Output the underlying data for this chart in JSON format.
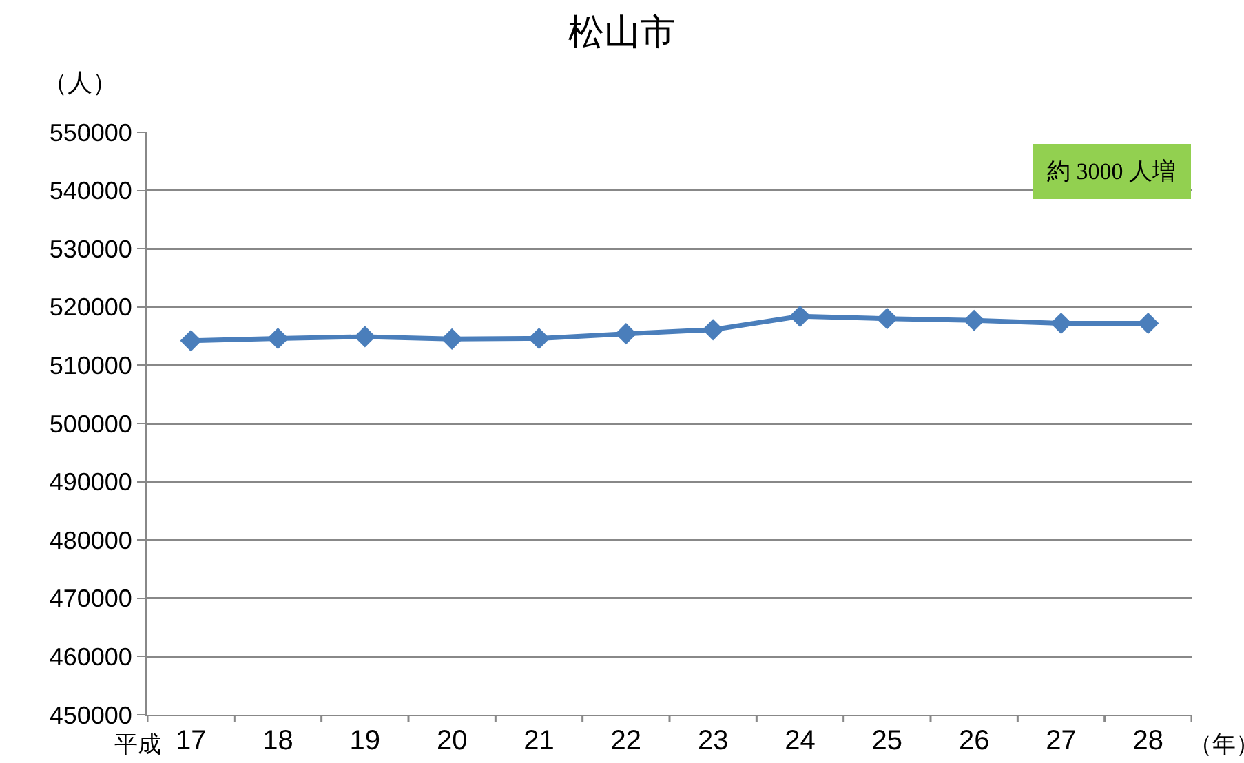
{
  "chart_data": {
    "type": "line",
    "title": "松山市",
    "ylabel": "（人）",
    "xlabel": "（年）",
    "annotations": [
      "約 3000 人増",
      "平成"
    ],
    "categories": [
      "17",
      "18",
      "19",
      "20",
      "21",
      "22",
      "23",
      "24",
      "25",
      "26",
      "27",
      "28"
    ],
    "series": [
      {
        "color": "#4a7ebb",
        "values": [
          514200,
          514600,
          514900,
          514500,
          514600,
          515400,
          516100,
          518400,
          518000,
          517700,
          517200,
          517200
        ]
      }
    ],
    "ylim": [
      450000,
      550000
    ],
    "yticks": [
      450000,
      460000,
      470000,
      480000,
      490000,
      500000,
      510000,
      520000,
      530000,
      540000,
      550000
    ],
    "grid": "y",
    "marker": "diamond",
    "line_style": "solid"
  }
}
